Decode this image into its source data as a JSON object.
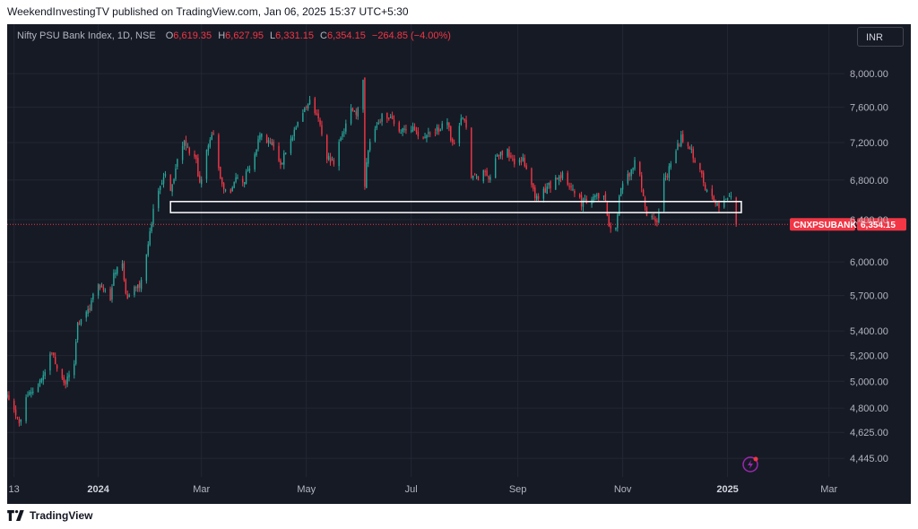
{
  "header": {
    "published_line": "WeekendInvestingTV published on TradingView.com, Jan 06, 2025 15:37 UTC+5:30"
  },
  "info": {
    "symbol_line": "Nifty PSU Bank Index, 1D, NSE",
    "o_label": "O",
    "o_value": "6,619.35",
    "h_label": "H",
    "h_value": "6,627.95",
    "l_label": "L",
    "l_value": "6,331.15",
    "c_label": "C",
    "c_value": "6,354.15",
    "change": "−264.85 (−4.00%)"
  },
  "currency_button": "INR",
  "footer": {
    "brand": "TradingView"
  },
  "colors": {
    "background": "#161a25",
    "grid": "#232733",
    "up": "#26a69a",
    "down": "#f23645",
    "axis_text": "#b2b5be",
    "price_line": "#f23645",
    "zone_border": "#ffffff"
  },
  "chart_data": {
    "type": "candlestick",
    "title": "Nifty PSU Bank Index, 1D, NSE",
    "interval": "1D",
    "y_scale": "log",
    "ylim": [
      4320,
      8280
    ],
    "y_ticks": [
      4445,
      4625,
      4800,
      5000,
      5200,
      5400,
      5700,
      6000,
      6400,
      6800,
      7200,
      7600,
      8000
    ],
    "y_tick_labels": [
      "4,445.00",
      "4,625.00",
      "4,800.00",
      "5,000.00",
      "5,200.00",
      "5,400.00",
      "5,700.00",
      "6,000.00",
      "6,400.00",
      "6,800.00",
      "7,200.00",
      "7,600.00",
      "8,000.00"
    ],
    "x_range": [
      "2023-11-09",
      "2025-03-10"
    ],
    "x_ticks": [
      {
        "date": "2023-11-13",
        "label": "13",
        "bold": false
      },
      {
        "date": "2024-01-01",
        "label": "2024",
        "bold": true
      },
      {
        "date": "2024-03-01",
        "label": "Mar",
        "bold": false
      },
      {
        "date": "2024-05-01",
        "label": "May",
        "bold": false
      },
      {
        "date": "2024-07-01",
        "label": "Jul",
        "bold": false
      },
      {
        "date": "2024-09-01",
        "label": "Sep",
        "bold": false
      },
      {
        "date": "2024-11-01",
        "label": "Nov",
        "bold": false
      },
      {
        "date": "2025-01-01",
        "label": "2025",
        "bold": true
      },
      {
        "date": "2025-03-01",
        "label": "Mar",
        "bold": false
      }
    ],
    "grid": true,
    "price_waypoints": [
      [
        "2023-11-09",
        4900
      ],
      [
        "2023-11-14",
        4740
      ],
      [
        "2023-11-17",
        4700
      ],
      [
        "2023-11-20",
        4880
      ],
      [
        "2023-11-28",
        4990
      ],
      [
        "2023-12-01",
        5100
      ],
      [
        "2023-12-05",
        5240
      ],
      [
        "2023-12-08",
        5100
      ],
      [
        "2023-12-12",
        4980
      ],
      [
        "2023-12-15",
        5050
      ],
      [
        "2023-12-18",
        5130
      ],
      [
        "2023-12-20",
        5450
      ],
      [
        "2023-12-26",
        5550
      ],
      [
        "2023-12-29",
        5720
      ],
      [
        "2024-01-03",
        5800
      ],
      [
        "2024-01-08",
        5650
      ],
      [
        "2024-01-10",
        5870
      ],
      [
        "2024-01-15",
        6020
      ],
      [
        "2024-01-17",
        5700
      ],
      [
        "2024-01-19",
        5680
      ],
      [
        "2024-01-23",
        5800
      ],
      [
        "2024-01-25",
        5750
      ],
      [
        "2024-01-30",
        6150
      ],
      [
        "2024-02-02",
        6500
      ],
      [
        "2024-02-06",
        6700
      ],
      [
        "2024-02-09",
        6900
      ],
      [
        "2024-02-12",
        6650
      ],
      [
        "2024-02-16",
        7000
      ],
      [
        "2024-02-20",
        7200
      ],
      [
        "2024-02-23",
        7100
      ],
      [
        "2024-02-27",
        7000
      ],
      [
        "2024-02-29",
        6750
      ],
      [
        "2024-03-04",
        7100
      ],
      [
        "2024-03-06",
        7250
      ],
      [
        "2024-03-08",
        7300
      ],
      [
        "2024-03-12",
        6850
      ],
      [
        "2024-03-14",
        6700
      ],
      [
        "2024-03-18",
        6650
      ],
      [
        "2024-03-21",
        6850
      ],
      [
        "2024-03-26",
        6800
      ],
      [
        "2024-04-01",
        7100
      ],
      [
        "2024-04-05",
        7300
      ],
      [
        "2024-04-10",
        7200
      ],
      [
        "2024-04-16",
        6950
      ],
      [
        "2024-04-22",
        7250
      ],
      [
        "2024-04-29",
        7500
      ],
      [
        "2024-05-03",
        7700
      ],
      [
        "2024-05-08",
        7450
      ],
      [
        "2024-05-13",
        7050
      ],
      [
        "2024-05-17",
        7000
      ],
      [
        "2024-05-22",
        7300
      ],
      [
        "2024-05-27",
        7550
      ],
      [
        "2024-05-31",
        7550
      ],
      [
        "2024-06-03",
        7950
      ],
      [
        "2024-06-04",
        6700
      ],
      [
        "2024-06-05",
        6950
      ],
      [
        "2024-06-07",
        7250
      ],
      [
        "2024-06-11",
        7400
      ],
      [
        "2024-06-14",
        7500
      ],
      [
        "2024-06-19",
        7450
      ],
      [
        "2024-06-24",
        7300
      ],
      [
        "2024-06-28",
        7350
      ],
      [
        "2024-07-03",
        7350
      ],
      [
        "2024-07-08",
        7250
      ],
      [
        "2024-07-12",
        7300
      ],
      [
        "2024-07-17",
        7350
      ],
      [
        "2024-07-22",
        7450
      ],
      [
        "2024-07-24",
        7250
      ],
      [
        "2024-07-26",
        7150
      ],
      [
        "2024-07-31",
        7500
      ],
      [
        "2024-08-02",
        7350
      ],
      [
        "2024-08-05",
        6850
      ],
      [
        "2024-08-08",
        6800
      ],
      [
        "2024-08-12",
        6900
      ],
      [
        "2024-08-15",
        6800
      ],
      [
        "2024-08-20",
        7050
      ],
      [
        "2024-08-26",
        7100
      ],
      [
        "2024-08-30",
        7000
      ],
      [
        "2024-09-04",
        7000
      ],
      [
        "2024-09-09",
        6750
      ],
      [
        "2024-09-12",
        6600
      ],
      [
        "2024-09-17",
        6700
      ],
      [
        "2024-09-23",
        6800
      ],
      [
        "2024-09-27",
        6850
      ],
      [
        "2024-10-01",
        6750
      ],
      [
        "2024-10-04",
        6700
      ],
      [
        "2024-10-08",
        6550
      ],
      [
        "2024-10-15",
        6650
      ],
      [
        "2024-10-21",
        6650
      ],
      [
        "2024-10-24",
        6350
      ],
      [
        "2024-10-28",
        6300
      ],
      [
        "2024-10-31",
        6750
      ],
      [
        "2024-11-06",
        6900
      ],
      [
        "2024-11-08",
        7000
      ],
      [
        "2024-11-11",
        6850
      ],
      [
        "2024-11-14",
        6500
      ],
      [
        "2024-11-18",
        6400
      ],
      [
        "2024-11-21",
        6380
      ],
      [
        "2024-11-25",
        6800
      ],
      [
        "2024-11-29",
        6950
      ],
      [
        "2024-12-02",
        7100
      ],
      [
        "2024-12-05",
        7250
      ],
      [
        "2024-12-09",
        7200
      ],
      [
        "2024-12-12",
        7050
      ],
      [
        "2024-12-16",
        6950
      ],
      [
        "2024-12-19",
        6700
      ],
      [
        "2024-12-23",
        6620
      ],
      [
        "2024-12-27",
        6550
      ],
      [
        "2025-01-01",
        6600
      ],
      [
        "2025-01-03",
        6619
      ],
      [
        "2025-01-06",
        6354
      ]
    ],
    "last_candle": {
      "date": "2025-01-06",
      "open": 6619.35,
      "high": 6627.95,
      "low": 6331.15,
      "close": 6354.15
    },
    "support_zone": {
      "from": "2024-02-12",
      "to": "2025-01-09",
      "low": 6470,
      "high": 6580
    },
    "last_price": {
      "label": "CNXPSUBANK",
      "value": 6354.15,
      "value_text": "6,354.15"
    }
  }
}
